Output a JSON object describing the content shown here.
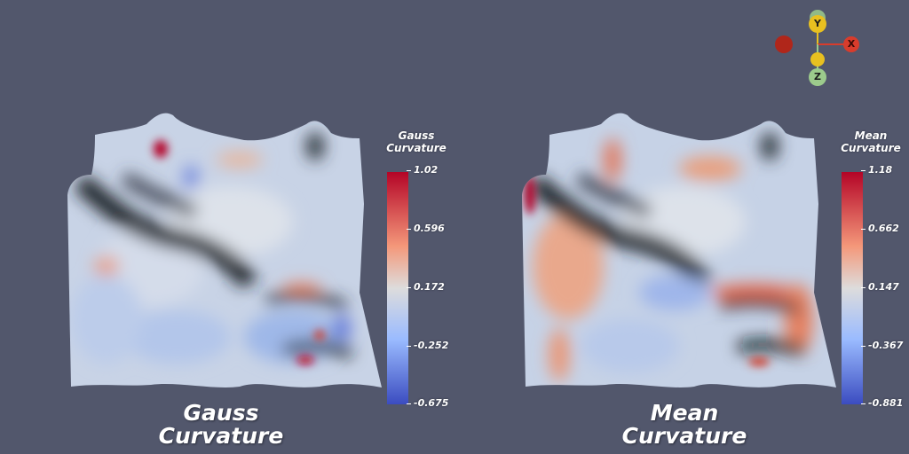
{
  "panels": [
    {
      "caption": "Gauss Curvature",
      "colorbar_title": "Gauss Curvature",
      "ticks": [
        "1.02",
        "0.596",
        "0.172",
        "-0.252",
        "-0.675"
      ]
    },
    {
      "caption": "Mean Curvature",
      "colorbar_title": "Mean Curvature",
      "ticks": [
        "1.18",
        "0.662",
        "0.147",
        "-0.367",
        "-0.881"
      ]
    }
  ],
  "orientation_axes": {
    "labels": [
      "Y",
      "X",
      "Z"
    ],
    "colors": {
      "y": "#e8c020",
      "x": "#d83c2c",
      "z": "#9ccb8c",
      "origin": "#b0261a"
    }
  },
  "colormap": {
    "high": "#b40426",
    "mid": "#dddcdc",
    "low": "#3b4cc0"
  },
  "background": "#52576c"
}
